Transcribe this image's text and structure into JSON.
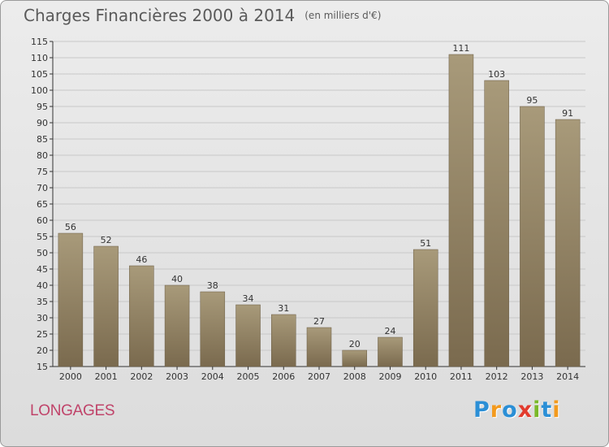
{
  "title": "Charges Financières 2000 à 2014",
  "subtitle": "(en milliers d'€)",
  "commune": "LONGAGES",
  "logo": {
    "letters": [
      {
        "char": "P",
        "color": "#2b8fd6"
      },
      {
        "char": "r",
        "color": "#f39a1d"
      },
      {
        "char": "o",
        "color": "#2b8fd6"
      },
      {
        "char": "x",
        "color": "#e23b2e"
      },
      {
        "char": "i",
        "color": "#7ab929"
      },
      {
        "char": "t",
        "color": "#2b8fd6"
      },
      {
        "char": "i",
        "color": "#f39a1d"
      }
    ]
  },
  "colors": {
    "bar_light": "#a89a7a",
    "bar_dark": "#7a6a4e",
    "grid": "#c8c8c8"
  },
  "chart_data": {
    "type": "bar",
    "title": "Charges Financières 2000 à 2014",
    "subtitle": "(en milliers d'€)",
    "categories": [
      "2000",
      "2001",
      "2002",
      "2003",
      "2004",
      "2005",
      "2006",
      "2007",
      "2008",
      "2009",
      "2010",
      "2011",
      "2012",
      "2013",
      "2014"
    ],
    "values": [
      56,
      52,
      46,
      40,
      38,
      34,
      31,
      27,
      20,
      24,
      51,
      111,
      103,
      95,
      91
    ],
    "ylim": [
      15,
      115
    ],
    "ytick_step": 5,
    "grid": true,
    "xlabel": "",
    "ylabel": ""
  }
}
